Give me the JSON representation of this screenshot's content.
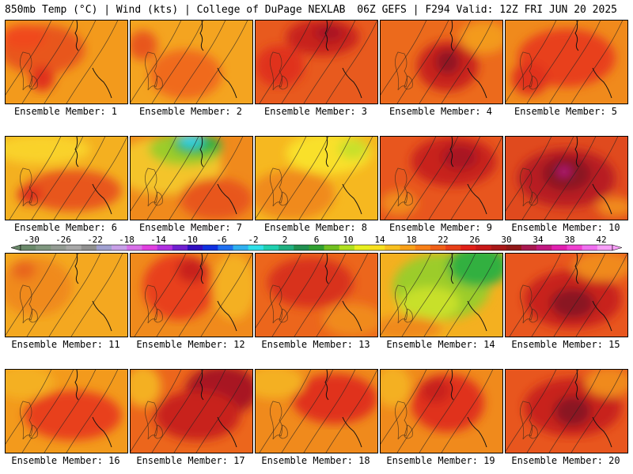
{
  "header": {
    "left": "850mb Temp (°C) | Wind (kts) | College of DuPage NEXLAB",
    "right": "06Z GEFS | F294 Valid: 12Z FRI JUN 20 2025"
  },
  "caption_prefix": "Ensemble Member:",
  "members": [
    {
      "number": "1",
      "base": "#f39a1c",
      "blobs": [
        [
          "#e8561e",
          0.3,
          0.35,
          0.35,
          0.3
        ],
        [
          "#f04a1c",
          0.15,
          0.2,
          0.18,
          0.15
        ],
        [
          "#e0301e",
          0.3,
          0.7,
          0.1,
          0.15
        ]
      ]
    },
    {
      "number": "2",
      "base": "#f4a420",
      "blobs": [
        [
          "#f06a1c",
          0.45,
          0.65,
          0.3,
          0.3
        ],
        [
          "#e8561e",
          0.1,
          0.3,
          0.12,
          0.18
        ]
      ]
    },
    {
      "number": "3",
      "base": "#e85a1e",
      "blobs": [
        [
          "#c8201e",
          0.55,
          0.2,
          0.3,
          0.22
        ],
        [
          "#a81822",
          0.6,
          0.15,
          0.12,
          0.1
        ],
        [
          "#e0301e",
          0.2,
          0.55,
          0.2,
          0.25
        ]
      ]
    },
    {
      "number": "4",
      "base": "#ec6a1c",
      "blobs": [
        [
          "#c8201e",
          0.55,
          0.55,
          0.25,
          0.3
        ],
        [
          "#901822",
          0.55,
          0.5,
          0.1,
          0.15
        ],
        [
          "#f39a1c",
          0.85,
          0.2,
          0.2,
          0.2
        ]
      ]
    },
    {
      "number": "5",
      "base": "#f08a1c",
      "blobs": [
        [
          "#e8401e",
          0.5,
          0.45,
          0.4,
          0.35
        ],
        [
          "#e0301e",
          0.2,
          0.7,
          0.15,
          0.2
        ]
      ]
    },
    {
      "number": "6",
      "base": "#f4b020",
      "blobs": [
        [
          "#e8561e",
          0.55,
          0.65,
          0.4,
          0.25
        ],
        [
          "#f9d22a",
          0.3,
          0.15,
          0.4,
          0.18
        ],
        [
          "#e0301e",
          0.2,
          0.7,
          0.1,
          0.12
        ]
      ]
    },
    {
      "number": "7",
      "base": "#f08a1c",
      "blobs": [
        [
          "#f4c42a",
          0.3,
          0.35,
          0.45,
          0.35
        ],
        [
          "#9ccc2a",
          0.45,
          0.15,
          0.3,
          0.2
        ],
        [
          "#30b040",
          0.55,
          0.1,
          0.2,
          0.12
        ],
        [
          "#30d0e8",
          0.5,
          0.05,
          0.1,
          0.08
        ],
        [
          "#e8561e",
          0.7,
          0.75,
          0.3,
          0.25
        ]
      ]
    },
    {
      "number": "8",
      "base": "#f6b820",
      "blobs": [
        [
          "#f9e02a",
          0.6,
          0.2,
          0.35,
          0.25
        ],
        [
          "#c8e02a",
          0.8,
          0.15,
          0.12,
          0.12
        ],
        [
          "#f08a1c",
          0.3,
          0.7,
          0.35,
          0.3
        ]
      ]
    },
    {
      "number": "9",
      "base": "#e8561e",
      "blobs": [
        [
          "#c8201e",
          0.6,
          0.3,
          0.35,
          0.3
        ],
        [
          "#a81822",
          0.65,
          0.25,
          0.15,
          0.15
        ],
        [
          "#f08a1c",
          0.15,
          0.8,
          0.15,
          0.15
        ]
      ]
    },
    {
      "number": "10",
      "base": "#e04a1e",
      "blobs": [
        [
          "#b81c20",
          0.5,
          0.5,
          0.4,
          0.35
        ],
        [
          "#8a1822",
          0.5,
          0.45,
          0.2,
          0.2
        ],
        [
          "#c01c8a",
          0.48,
          0.42,
          0.05,
          0.05
        ],
        [
          "#f08a1c",
          0.9,
          0.85,
          0.15,
          0.12
        ]
      ]
    },
    {
      "number": "11",
      "base": "#f4a820",
      "blobs": [
        [
          "#f08a1c",
          0.25,
          0.4,
          0.3,
          0.35
        ],
        [
          "#e8661e",
          0.15,
          0.2,
          0.1,
          0.12
        ]
      ]
    },
    {
      "number": "12",
      "base": "#f08a1c",
      "blobs": [
        [
          "#e8401e",
          0.4,
          0.4,
          0.3,
          0.4
        ],
        [
          "#c8201e",
          0.5,
          0.2,
          0.12,
          0.15
        ],
        [
          "#f4b020",
          0.85,
          0.4,
          0.18,
          0.4
        ]
      ]
    },
    {
      "number": "13",
      "base": "#ec661c",
      "blobs": [
        [
          "#d8301e",
          0.45,
          0.35,
          0.35,
          0.3
        ],
        [
          "#f08a1c",
          0.8,
          0.8,
          0.25,
          0.2
        ]
      ]
    },
    {
      "number": "14",
      "base": "#f4b020",
      "blobs": [
        [
          "#9ccc2a",
          0.5,
          0.4,
          0.4,
          0.4
        ],
        [
          "#30b040",
          0.8,
          0.15,
          0.25,
          0.25
        ],
        [
          "#c8e02a",
          0.4,
          0.6,
          0.25,
          0.2
        ],
        [
          "#f08a1c",
          0.2,
          0.9,
          0.3,
          0.15
        ]
      ]
    },
    {
      "number": "15",
      "base": "#e8561e",
      "blobs": [
        [
          "#c8201e",
          0.55,
          0.55,
          0.4,
          0.35
        ],
        [
          "#8a1822",
          0.55,
          0.6,
          0.18,
          0.18
        ],
        [
          "#f08a1c",
          0.8,
          0.15,
          0.25,
          0.18
        ]
      ]
    },
    {
      "number": "16",
      "base": "#f39a1c",
      "blobs": [
        [
          "#e8401e",
          0.55,
          0.55,
          0.4,
          0.3
        ],
        [
          "#f4b020",
          0.15,
          0.15,
          0.25,
          0.2
        ]
      ]
    },
    {
      "number": "17",
      "base": "#ec661c",
      "blobs": [
        [
          "#a81822",
          0.75,
          0.25,
          0.3,
          0.3
        ],
        [
          "#c8201e",
          0.55,
          0.55,
          0.35,
          0.3
        ],
        [
          "#f4b020",
          0.1,
          0.2,
          0.15,
          0.25
        ]
      ]
    },
    {
      "number": "18",
      "base": "#f08a1c",
      "blobs": [
        [
          "#e0301e",
          0.65,
          0.35,
          0.35,
          0.3
        ],
        [
          "#f4b020",
          0.15,
          0.15,
          0.25,
          0.2
        ]
      ]
    },
    {
      "number": "19",
      "base": "#f08a1c",
      "blobs": [
        [
          "#e0301e",
          0.55,
          0.4,
          0.3,
          0.35
        ],
        [
          "#f4b020",
          0.1,
          0.2,
          0.15,
          0.25
        ],
        [
          "#c8201e",
          0.45,
          0.25,
          0.12,
          0.15
        ]
      ]
    },
    {
      "number": "20",
      "base": "#e8561e",
      "blobs": [
        [
          "#c8201e",
          0.55,
          0.45,
          0.4,
          0.35
        ],
        [
          "#8a1822",
          0.55,
          0.5,
          0.15,
          0.18
        ],
        [
          "#f08a1c",
          0.85,
          0.15,
          0.2,
          0.18
        ]
      ]
    }
  ],
  "colorbar": {
    "labels": [
      "-30",
      "-26",
      "-22",
      "-18",
      "-14",
      "-10",
      "-6",
      "-2",
      "2",
      "6",
      "10",
      "14",
      "18",
      "22",
      "26",
      "30",
      "34",
      "38",
      "42"
    ],
    "colors": [
      "#6b8a6b",
      "#7f977f",
      "#939b93",
      "#a8a8a8",
      "#909090",
      "#a0a0d0",
      "#c8a0e8",
      "#d870e8",
      "#e040e0",
      "#b030e0",
      "#7020d0",
      "#3010c0",
      "#1030e0",
      "#2070f0",
      "#30b0f0",
      "#30e0e8",
      "#20d0b0",
      "#20b080",
      "#209050",
      "#30a030",
      "#70c020",
      "#b0e020",
      "#e8f020",
      "#f8e020",
      "#f8c020",
      "#f8a018",
      "#f88018",
      "#f06018",
      "#e84018",
      "#e02018",
      "#c81818",
      "#a81818",
      "#901818",
      "#a81850",
      "#c01880",
      "#e020b0",
      "#f040d0",
      "#f070f0",
      "#f8a0f8"
    ]
  }
}
